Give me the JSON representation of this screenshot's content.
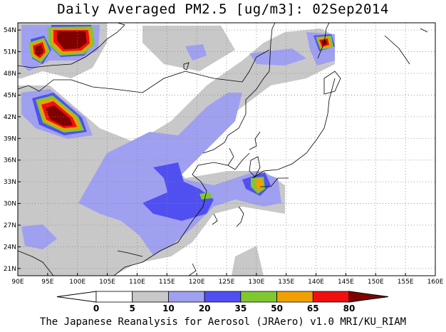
{
  "title": "Daily Averaged PM2.5 [ug/m3]: 02Sep2014",
  "footer": "The Japanese Reanalysis for Aerosol (JRAero) v1.0 MRI/KU_RIAM",
  "map": {
    "projection": "lat-lon",
    "lon_range": [
      90,
      160
    ],
    "lat_range": [
      20,
      55
    ],
    "lon_ticks": [
      "90E",
      "95E",
      "100E",
      "105E",
      "110E",
      "115E",
      "120E",
      "125E",
      "130E",
      "135E",
      "140E",
      "145E",
      "150E",
      "155E",
      "160E"
    ],
    "lat_ticks": [
      "54N",
      "51N",
      "48N",
      "45N",
      "42N",
      "39N",
      "36N",
      "33N",
      "30N",
      "27N",
      "24N",
      "21N"
    ],
    "grid": true
  },
  "colorbar": {
    "levels": [
      "0",
      "5",
      "10",
      "20",
      "35",
      "50",
      "65",
      "80"
    ],
    "colors": [
      "#ffffff",
      "#c8c8c8",
      "#a0a0f0",
      "#5050f0",
      "#80c830",
      "#f0a000",
      "#f01010",
      "#800000"
    ]
  }
}
